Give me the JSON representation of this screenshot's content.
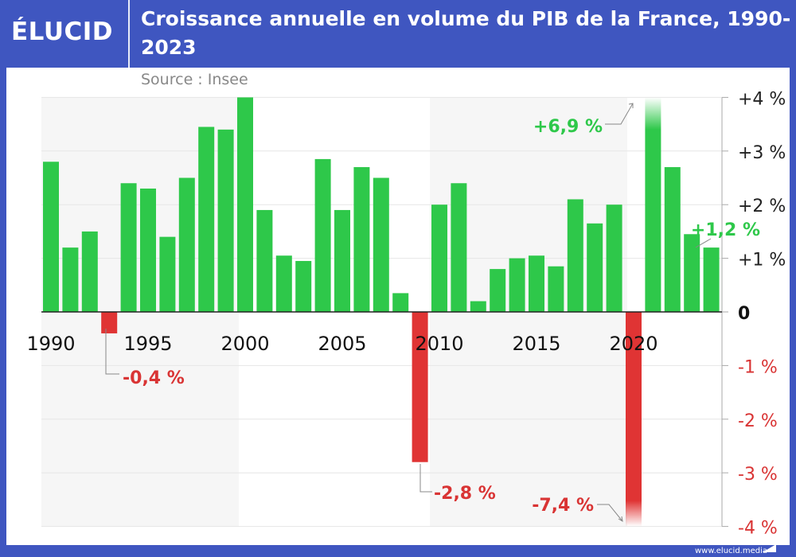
{
  "brand": {
    "logo": "ÉLUCID",
    "website": "www.elucid.media"
  },
  "colors": {
    "frame": "#3f56c0",
    "positive": "#2ec84a",
    "negative": "#e03434",
    "positive_label": "#2ec84a",
    "negative_label": "#d93434"
  },
  "chart_data": {
    "type": "bar",
    "title": "Croissance annuelle en volume du PIB de la France, 1990-2023",
    "subtitle": "Source : Insee",
    "x": [
      1990,
      1991,
      1992,
      1993,
      1994,
      1995,
      1996,
      1997,
      1998,
      1999,
      2000,
      2001,
      2002,
      2003,
      2004,
      2005,
      2006,
      2007,
      2008,
      2009,
      2010,
      2011,
      2012,
      2013,
      2014,
      2015,
      2016,
      2017,
      2018,
      2019,
      2020,
      2021,
      2022,
      2023,
      2024
    ],
    "values": [
      2.8,
      1.2,
      1.5,
      -0.4,
      2.4,
      2.3,
      1.4,
      2.5,
      3.45,
      3.4,
      4.0,
      1.9,
      1.05,
      0.95,
      2.85,
      1.9,
      2.7,
      2.5,
      0.35,
      -2.8,
      2.0,
      2.4,
      0.2,
      0.8,
      1.0,
      1.05,
      0.85,
      2.1,
      1.65,
      2.0,
      -7.4,
      6.9,
      2.7,
      1.45,
      1.2
    ],
    "x_tick_labels": [
      "1990",
      "1995",
      "2000",
      "2005",
      "2010",
      "2015",
      "2020"
    ],
    "y_ticks": [
      {
        "v": 4,
        "label": "+4 %"
      },
      {
        "v": 3,
        "label": "+3 %"
      },
      {
        "v": 2,
        "label": "+2 %"
      },
      {
        "v": 1,
        "label": "+1 %"
      },
      {
        "v": 0,
        "label": "0"
      },
      {
        "v": -1,
        "label": "-1 %"
      },
      {
        "v": -2,
        "label": "-2 %"
      },
      {
        "v": -3,
        "label": "-3 %"
      },
      {
        "v": -4,
        "label": "-4 %"
      }
    ],
    "ylim": [
      -4,
      4
    ],
    "grid": true,
    "y_axis_side": "right",
    "shaded_periods": [
      [
        1990,
        2000
      ],
      [
        2010,
        2020
      ]
    ],
    "annotations": [
      {
        "year": 1993,
        "label": "-0,4 %"
      },
      {
        "year": 2009,
        "label": "-2,8 %"
      },
      {
        "year": 2020,
        "label": "-7,4 %"
      },
      {
        "year": 2021,
        "label": "+6,9 %"
      },
      {
        "year": 2024,
        "label": "+1,2 %"
      }
    ]
  }
}
